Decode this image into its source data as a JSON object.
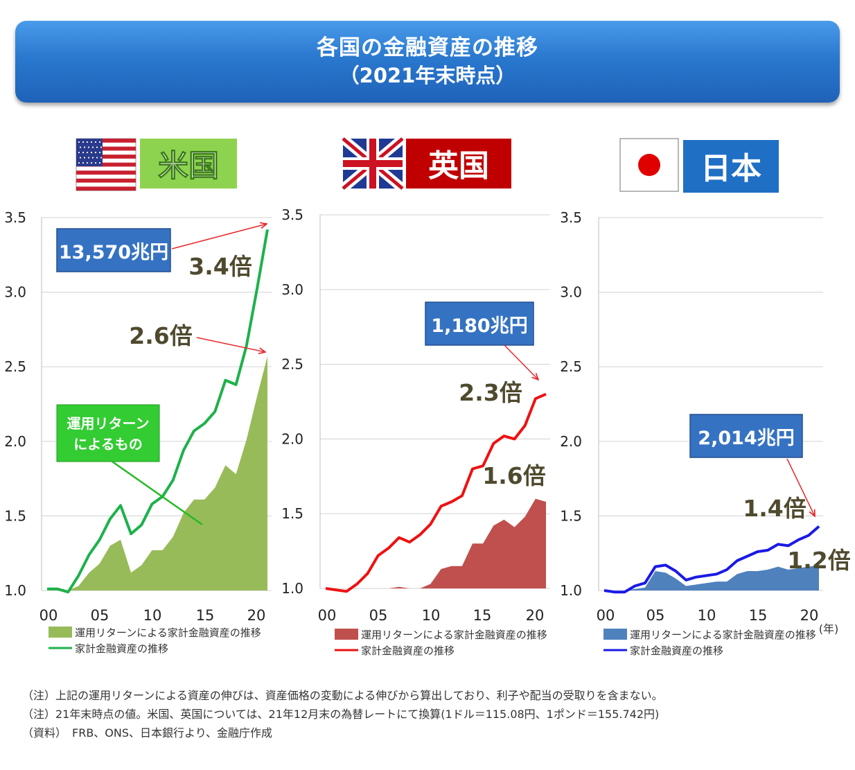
{
  "title": {
    "line1": "各国の金融資産の推移",
    "line2": "（2021年末時点）"
  },
  "panels": [
    {
      "country": "米国",
      "label_bg": "#8ed34f",
      "flag": "us-flag-icon",
      "line_color": "#1db14b",
      "area_color": "#98bb5a",
      "total_label": "13,570兆円",
      "line_multiple": "3.4倍",
      "area_multiple": "2.6倍",
      "callout": [
        "運用リターン",
        "によるもの"
      ]
    },
    {
      "country": "英国",
      "label_bg": "#c00000",
      "flag": "uk-flag-icon",
      "line_color": "#ee1111",
      "area_color": "#c0504d",
      "total_label": "1,180兆円",
      "line_multiple": "2.3倍",
      "area_multiple": "1.6倍"
    },
    {
      "country": "日本",
      "label_bg": "#1f6fc5",
      "flag": "japan-flag-icon",
      "line_color": "#1a1ae6",
      "area_color": "#4f81bd",
      "total_label": "2,014兆円",
      "line_multiple": "1.4倍",
      "area_multiple": "1.2倍",
      "year_unit": "(年)"
    }
  ],
  "legend": {
    "area": "運用リターンによる家計金融資産の推移",
    "line": "家計金融資産の推移"
  },
  "chart_data": [
    {
      "type": "area",
      "country": "米国",
      "x": [
        2000,
        2001,
        2002,
        2003,
        2004,
        2005,
        2006,
        2007,
        2008,
        2009,
        2010,
        2011,
        2012,
        2013,
        2014,
        2015,
        2016,
        2017,
        2018,
        2019,
        2020,
        2021
      ],
      "x_ticks": [
        "00",
        "05",
        "10",
        "15",
        "20"
      ],
      "y_ticks": [
        "1.0",
        "1.5",
        "2.0",
        "2.5",
        "3.0",
        "3.5"
      ],
      "ylim": [
        1.0,
        3.5
      ],
      "series": [
        {
          "values": [
            1.0,
            1.01,
            0.99,
            1.03,
            1.12,
            1.18,
            1.3,
            1.34,
            1.12,
            1.17,
            1.27,
            1.27,
            1.36,
            1.52,
            1.61,
            1.61,
            1.69,
            1.84,
            1.78,
            2.01,
            2.3,
            2.57
          ]
        },
        {
          "values": [
            1.01,
            1.01,
            0.99,
            1.1,
            1.24,
            1.34,
            1.48,
            1.57,
            1.38,
            1.44,
            1.58,
            1.63,
            1.74,
            1.94,
            2.07,
            2.12,
            2.2,
            2.41,
            2.38,
            2.64,
            3.02,
            3.42
          ]
        }
      ]
    },
    {
      "type": "area",
      "country": "英国",
      "x": [
        2000,
        2001,
        2002,
        2003,
        2004,
        2005,
        2006,
        2007,
        2008,
        2009,
        2010,
        2011,
        2012,
        2013,
        2014,
        2015,
        2016,
        2017,
        2018,
        2019,
        2020,
        2021
      ],
      "x_ticks": [
        "00",
        "05",
        "10",
        "15",
        "20"
      ],
      "y_ticks": [
        "1.0",
        "1.5",
        "2.0",
        "2.5",
        "3.0",
        "3.5"
      ],
      "ylim": [
        1.0,
        3.5
      ],
      "series": [
        {
          "values": [
            1.0,
            0.99,
            0.98,
            0.99,
            0.99,
            1.0,
            1.0,
            1.01,
            0.98,
            0.98,
            1.03,
            1.13,
            1.15,
            1.15,
            1.3,
            1.3,
            1.42,
            1.46,
            1.41,
            1.48,
            1.6,
            1.58
          ]
        },
        {
          "values": [
            1.0,
            0.99,
            0.98,
            1.03,
            1.1,
            1.22,
            1.27,
            1.34,
            1.31,
            1.36,
            1.43,
            1.55,
            1.58,
            1.62,
            1.8,
            1.82,
            1.97,
            2.02,
            2.0,
            2.09,
            2.27,
            2.3
          ]
        }
      ]
    },
    {
      "type": "area",
      "country": "日本",
      "x": [
        2000,
        2001,
        2002,
        2003,
        2004,
        2005,
        2006,
        2007,
        2008,
        2009,
        2010,
        2011,
        2012,
        2013,
        2014,
        2015,
        2016,
        2017,
        2018,
        2019,
        2020,
        2021
      ],
      "x_ticks": [
        "00",
        "05",
        "10",
        "15",
        "20"
      ],
      "y_ticks": [
        "1.0",
        "1.5",
        "2.0",
        "2.5",
        "3.0",
        "3.5"
      ],
      "ylim": [
        1.0,
        3.5
      ],
      "series": [
        {
          "values": [
            1.0,
            0.99,
            0.98,
            1.01,
            1.02,
            1.13,
            1.12,
            1.08,
            1.03,
            1.04,
            1.05,
            1.06,
            1.06,
            1.11,
            1.13,
            1.13,
            1.14,
            1.16,
            1.14,
            1.15,
            1.16,
            1.17
          ]
        },
        {
          "values": [
            1.0,
            0.99,
            0.99,
            1.03,
            1.05,
            1.16,
            1.17,
            1.13,
            1.07,
            1.09,
            1.1,
            1.11,
            1.14,
            1.2,
            1.23,
            1.26,
            1.27,
            1.31,
            1.3,
            1.34,
            1.37,
            1.43
          ]
        }
      ]
    }
  ],
  "notes": [
    "（注）上記の運用リターンによる資産の伸びは、資産価格の変動による伸びから算出しており、利子や配当の受取りを含まない。",
    "（注）21年末時点の値。米国、英国については、21年12月末の為替レートにて換算(1ドル＝115.08円、1ポンド＝155.742円)",
    "（資料）　FRB、ONS、日本銀行より、金融庁作成"
  ]
}
